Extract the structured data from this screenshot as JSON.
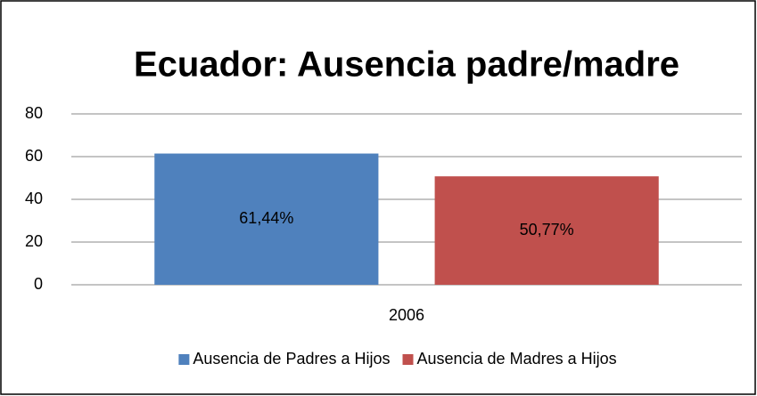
{
  "chart_data": {
    "type": "bar",
    "title": "Ecuador: Ausencia padre/madre",
    "categories": [
      "2006"
    ],
    "series": [
      {
        "name": "Ausencia de Padres a Hijos",
        "color": "#4f81bd",
        "values": [
          61.44
        ],
        "value_labels": [
          "61,44%"
        ]
      },
      {
        "name": "Ausencia de Madres a Hijos",
        "color": "#c0504d",
        "values": [
          50.77
        ],
        "value_labels": [
          "50,77%"
        ]
      }
    ],
    "ylim": [
      0,
      80
    ],
    "yticks": [
      0,
      20,
      40,
      60,
      80
    ],
    "grid": true,
    "legend": "bottom"
  }
}
